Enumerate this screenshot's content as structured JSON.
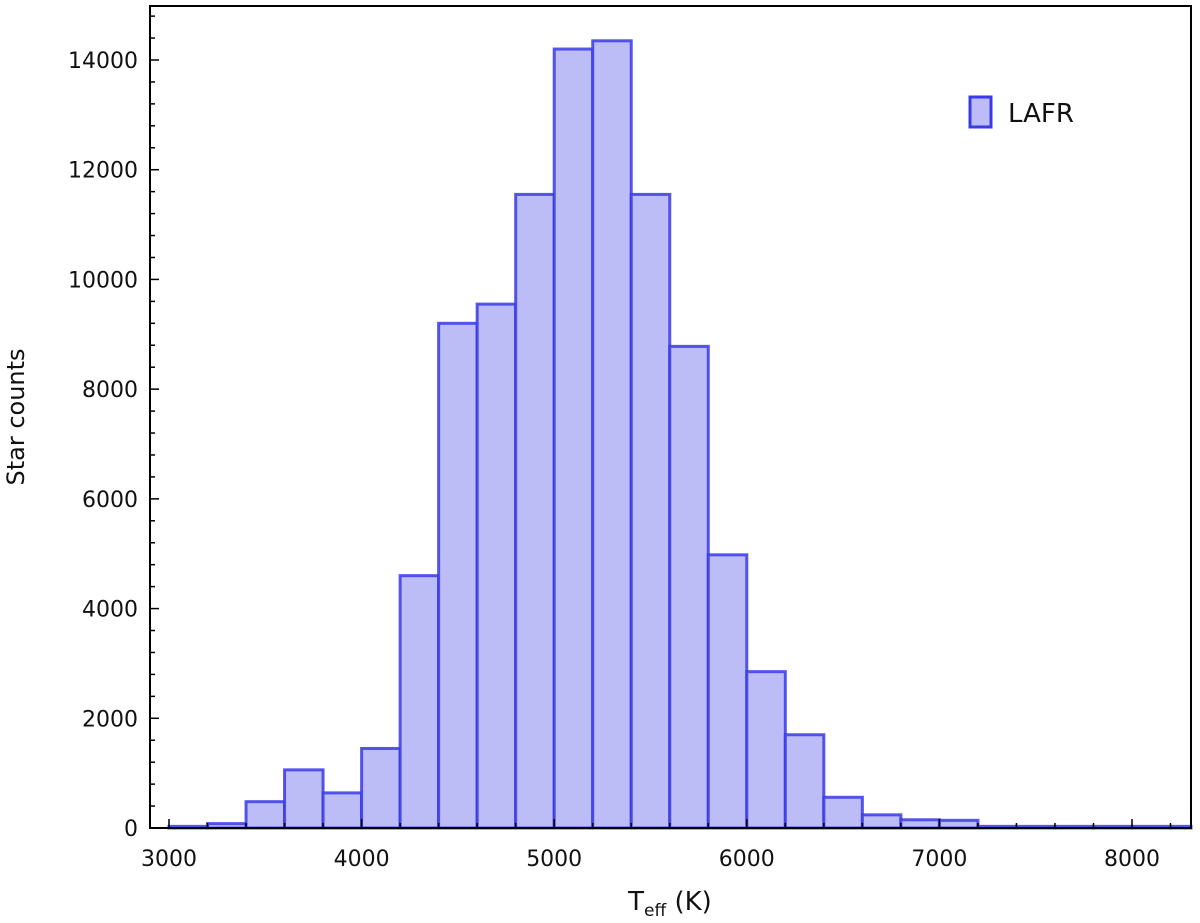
{
  "chart_data": {
    "type": "bar",
    "title": "",
    "xlabel": {
      "main": "T",
      "sub": "eff",
      "rest": " (K)"
    },
    "ylabel": "Star counts",
    "xlim": [
      2900,
      8300
    ],
    "ylim": [
      0,
      15000
    ],
    "xticks": [
      3000,
      4000,
      5000,
      6000,
      7000,
      8000
    ],
    "yticks": [
      0,
      2000,
      4000,
      6000,
      8000,
      10000,
      12000,
      14000
    ],
    "xtick_labels": [
      "3000",
      "4000",
      "5000",
      "6000",
      "7000",
      "8000"
    ],
    "ytick_labels": [
      "0",
      "2000",
      "4000",
      "6000",
      "8000",
      "10000",
      "12000",
      "14000"
    ],
    "legend_position": "top-right",
    "grid": false,
    "bin_width": 200,
    "series": [
      {
        "name": "LAFR",
        "color": "#3a3ae6",
        "fill": "#bcbcf7",
        "bins": [
          {
            "x0": 3000,
            "value": 30
          },
          {
            "x0": 3200,
            "value": 80
          },
          {
            "x0": 3400,
            "value": 480
          },
          {
            "x0": 3600,
            "value": 1060
          },
          {
            "x0": 3800,
            "value": 640
          },
          {
            "x0": 4000,
            "value": 1450
          },
          {
            "x0": 4200,
            "value": 4600
          },
          {
            "x0": 4400,
            "value": 9200
          },
          {
            "x0": 4600,
            "value": 9550
          },
          {
            "x0": 4800,
            "value": 11550
          },
          {
            "x0": 5000,
            "value": 14200
          },
          {
            "x0": 5200,
            "value": 14350
          },
          {
            "x0": 5400,
            "value": 11550
          },
          {
            "x0": 5600,
            "value": 8780
          },
          {
            "x0": 5800,
            "value": 4980
          },
          {
            "x0": 6000,
            "value": 2850
          },
          {
            "x0": 6200,
            "value": 1700
          },
          {
            "x0": 6400,
            "value": 560
          },
          {
            "x0": 6600,
            "value": 240
          },
          {
            "x0": 6800,
            "value": 150
          },
          {
            "x0": 7000,
            "value": 140
          },
          {
            "x0": 7200,
            "value": 30
          },
          {
            "x0": 7400,
            "value": 30
          },
          {
            "x0": 7600,
            "value": 30
          },
          {
            "x0": 7800,
            "value": 30
          },
          {
            "x0": 8000,
            "value": 30
          },
          {
            "x0": 8200,
            "value": 30
          }
        ]
      }
    ]
  }
}
